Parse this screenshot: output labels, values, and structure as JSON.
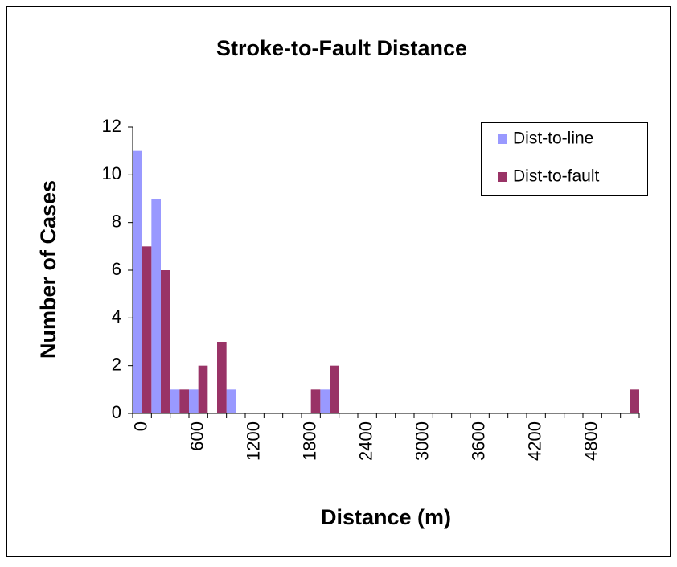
{
  "chart_data": {
    "type": "bar",
    "title": "Stroke-to-Fault Distance",
    "x_label": "Distance (m)",
    "y_label": "Number of Cases",
    "categories": [
      "0",
      null,
      null,
      "600",
      null,
      null,
      "1200",
      null,
      null,
      "1800",
      null,
      null,
      "2400",
      null,
      null,
      "3000",
      null,
      null,
      "3600",
      null,
      null,
      "4200",
      null,
      null,
      "4800",
      null,
      null
    ],
    "series": [
      {
        "name": "Dist-to-line",
        "color": "#9999ff",
        "values": [
          11,
          9,
          1,
          1,
          0,
          1,
          0,
          0,
          0,
          0,
          1,
          0,
          0,
          0,
          0,
          0,
          0,
          0,
          0,
          0,
          0,
          0,
          0,
          0,
          0,
          0,
          0
        ]
      },
      {
        "name": "Dist-to-fault",
        "color": "#993366",
        "values": [
          7,
          6,
          1,
          2,
          3,
          0,
          0,
          0,
          0,
          1,
          2,
          0,
          0,
          0,
          0,
          0,
          0,
          0,
          0,
          0,
          0,
          0,
          0,
          0,
          0,
          0,
          1
        ]
      }
    ],
    "ylim": [
      0,
      12
    ],
    "yticks": [
      0,
      2,
      4,
      6,
      8,
      10,
      12
    ],
    "grid": false,
    "legend": "top-right"
  }
}
